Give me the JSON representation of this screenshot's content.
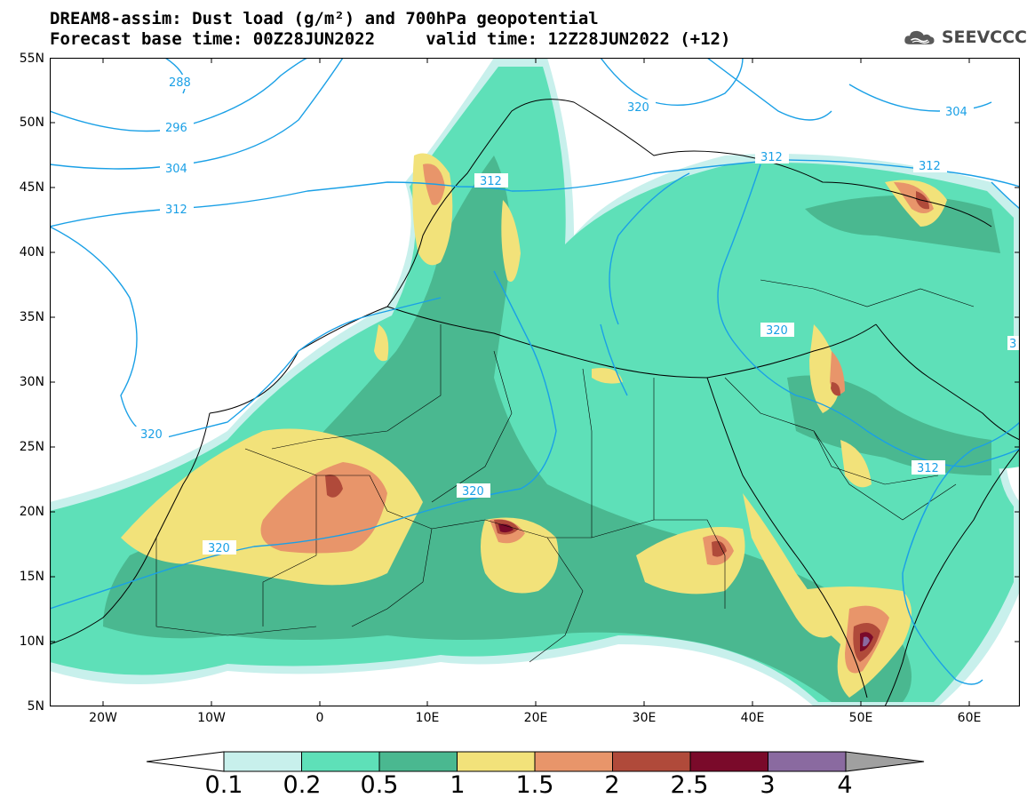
{
  "header": {
    "title_line1": "DREAM8-assim: Dust load (g/m²) and 700hPa geopotential",
    "title_line2": "Forecast base time: 00Z28JUN2022     valid time: 12Z28JUN2022 (+12)"
  },
  "logo": {
    "text": "SEEVCCC",
    "icon": "cloud-icon"
  },
  "axes": {
    "lat_labels": [
      "55N",
      "50N",
      "45N",
      "40N",
      "35N",
      "30N",
      "25N",
      "20N",
      "15N",
      "10N",
      "5N"
    ],
    "lon_labels": [
      "20W",
      "10W",
      "0",
      "10E",
      "20E",
      "30E",
      "40E",
      "50E",
      "60E"
    ]
  },
  "contours": {
    "labels": [
      "288",
      "296",
      "304",
      "312",
      "320",
      "320",
      "312",
      "312",
      "312",
      "320",
      "320",
      "320",
      "312",
      "304",
      "3"
    ],
    "color": "#1aa0e6"
  },
  "legend": {
    "levels": [
      "0.1",
      "0.2",
      "0.5",
      "1",
      "1.5",
      "2",
      "2.5",
      "3",
      "4"
    ],
    "colors": [
      "#c8f0ec",
      "#5ee0b8",
      "#4ab890",
      "#f2e27a",
      "#e8956a",
      "#b04a3a",
      "#7a0a2a",
      "#8a6aa0",
      "#a0a0a0"
    ]
  }
}
